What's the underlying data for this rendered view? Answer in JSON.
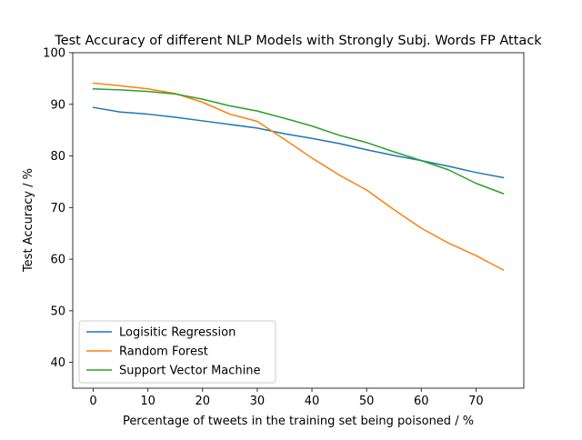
{
  "chart_data": {
    "type": "line",
    "title": "Test Accuracy of different NLP Models with Strongly Subj. Words FP Attack",
    "xlabel": "Percentage of tweets in the training set being poisoned / %",
    "ylabel": "Test Accuracy / %",
    "xlim": [
      -3.75,
      78.75
    ],
    "ylim": [
      35,
      100
    ],
    "xticks": [
      0,
      10,
      20,
      30,
      40,
      50,
      60,
      70
    ],
    "yticks": [
      40,
      50,
      60,
      70,
      80,
      90,
      100
    ],
    "grid": false,
    "legend_position": "lower-left",
    "x": [
      0,
      5,
      10,
      15,
      20,
      25,
      30,
      35,
      40,
      45,
      50,
      55,
      60,
      65,
      70,
      75
    ],
    "series": [
      {
        "name": "Logisitic Regression",
        "color": "#1f77b4",
        "values": [
          89.4,
          88.5,
          88.1,
          87.5,
          86.8,
          86.1,
          85.4,
          84.3,
          83.4,
          82.4,
          81.2,
          80.1,
          79.1,
          78.0,
          76.8,
          75.8
        ]
      },
      {
        "name": "Random Forest",
        "color": "#ff7f0e",
        "values": [
          94.1,
          93.6,
          93.0,
          92.1,
          90.4,
          88.1,
          86.7,
          83.2,
          79.6,
          76.3,
          73.4,
          69.6,
          66.0,
          63.1,
          60.7,
          57.9
        ]
      },
      {
        "name": "Support Vector Machine",
        "color": "#2ca02c",
        "values": [
          93.0,
          92.8,
          92.5,
          92.0,
          91.0,
          89.7,
          88.7,
          87.3,
          85.8,
          84.0,
          82.6,
          80.8,
          79.1,
          77.3,
          74.7,
          72.7
        ]
      }
    ]
  }
}
